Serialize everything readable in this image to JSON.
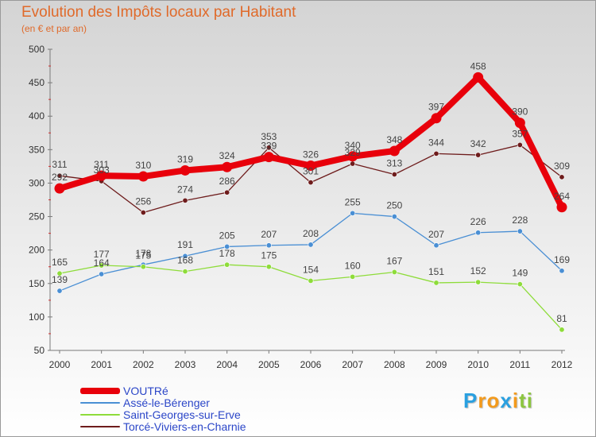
{
  "header": {
    "title": "Evolution des Impôts locaux par Habitant",
    "subtitle": "(en € et par an)"
  },
  "chart_data": {
    "type": "line",
    "title": "Evolution des Impôts locaux par Habitant",
    "subtitle": "(en € et par an)",
    "xlabel": "",
    "ylabel": "",
    "ylim": [
      50,
      500
    ],
    "yticks": [
      50,
      100,
      150,
      200,
      250,
      300,
      350,
      400,
      450,
      500
    ],
    "x": [
      "2000",
      "2001",
      "2002",
      "2003",
      "2004",
      "2005",
      "2006",
      "2007",
      "2008",
      "2009",
      "2010",
      "2011",
      "2012"
    ],
    "grid": false,
    "legend_position": "bottom-left",
    "series": [
      {
        "name": "VOUTRé",
        "color": "#e8000b",
        "values": [
          292,
          311,
          310,
          319,
          324,
          339,
          326,
          340,
          348,
          397,
          458,
          390,
          264
        ]
      },
      {
        "name": "Assé-le-Bérenger",
        "color": "#4a8fd4",
        "values": [
          139,
          164,
          178,
          191,
          205,
          207,
          208,
          255,
          250,
          207,
          226,
          228,
          169
        ]
      },
      {
        "name": "Saint-Georges-sur-Erve",
        "color": "#8edc3a",
        "values": [
          165,
          177,
          175,
          168,
          178,
          175,
          154,
          160,
          167,
          151,
          152,
          149,
          81
        ]
      },
      {
        "name": "Torcé-Viviers-en-Charnie",
        "color": "#6e1c1c",
        "values": [
          311,
          303,
          256,
          274,
          286,
          353,
          301,
          329,
          313,
          344,
          342,
          357,
          309
        ]
      }
    ]
  },
  "logo": {
    "letters": [
      "P",
      "r",
      "o",
      "x",
      "i",
      "t",
      "i"
    ],
    "colors": [
      "#2aa0e0",
      "#f39a1c",
      "#f39a1c",
      "#2aa0e0",
      "#f39a1c",
      "#8cc63f",
      "#8cc63f"
    ]
  }
}
